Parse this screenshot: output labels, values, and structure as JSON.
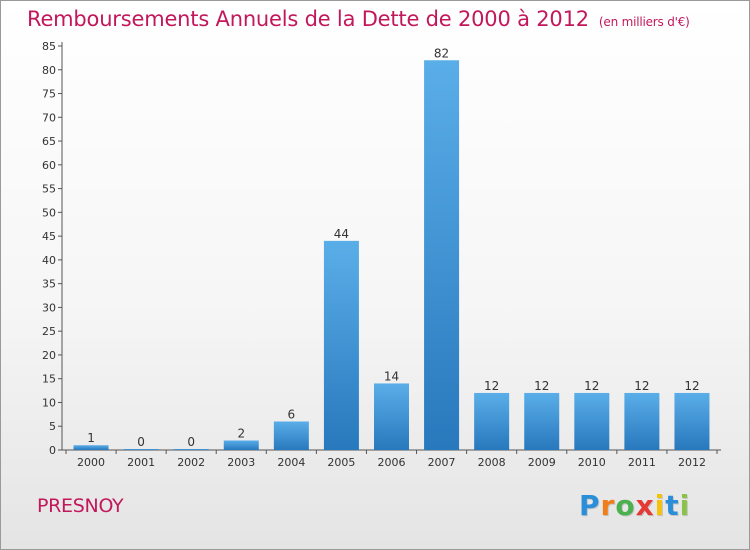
{
  "chart_data": {
    "type": "bar",
    "title": "Remboursements Annuels de la Dette de 2000 à 2012",
    "unit_note": "(en milliers d'€)",
    "categories": [
      "2000",
      "2001",
      "2002",
      "2003",
      "2004",
      "2005",
      "2006",
      "2007",
      "2008",
      "2009",
      "2010",
      "2011",
      "2012"
    ],
    "values": [
      1,
      0,
      0,
      2,
      6,
      44,
      14,
      82,
      12,
      12,
      12,
      12,
      12
    ],
    "ylim": [
      0,
      85
    ],
    "yticks": [
      0,
      5,
      10,
      15,
      20,
      25,
      30,
      35,
      40,
      45,
      50,
      55,
      60,
      65,
      70,
      75,
      80,
      85
    ],
    "grid": false,
    "bar_color": "#3a8fd6",
    "bar_color_light": "#5aaee8",
    "bar_color_dark": "#2878bd"
  },
  "commune": "PRESNOY",
  "logo": {
    "letters": [
      "P",
      "r",
      "o",
      "x",
      "i",
      "t",
      "i"
    ],
    "colors": [
      "#2a8fd8",
      "#f07d1a",
      "#4caf50",
      "#e53935",
      "#f4c20d",
      "#2a8fd8",
      "#8bc34a"
    ]
  },
  "colors": {
    "title": "#c2185b",
    "axis": "#555555"
  }
}
